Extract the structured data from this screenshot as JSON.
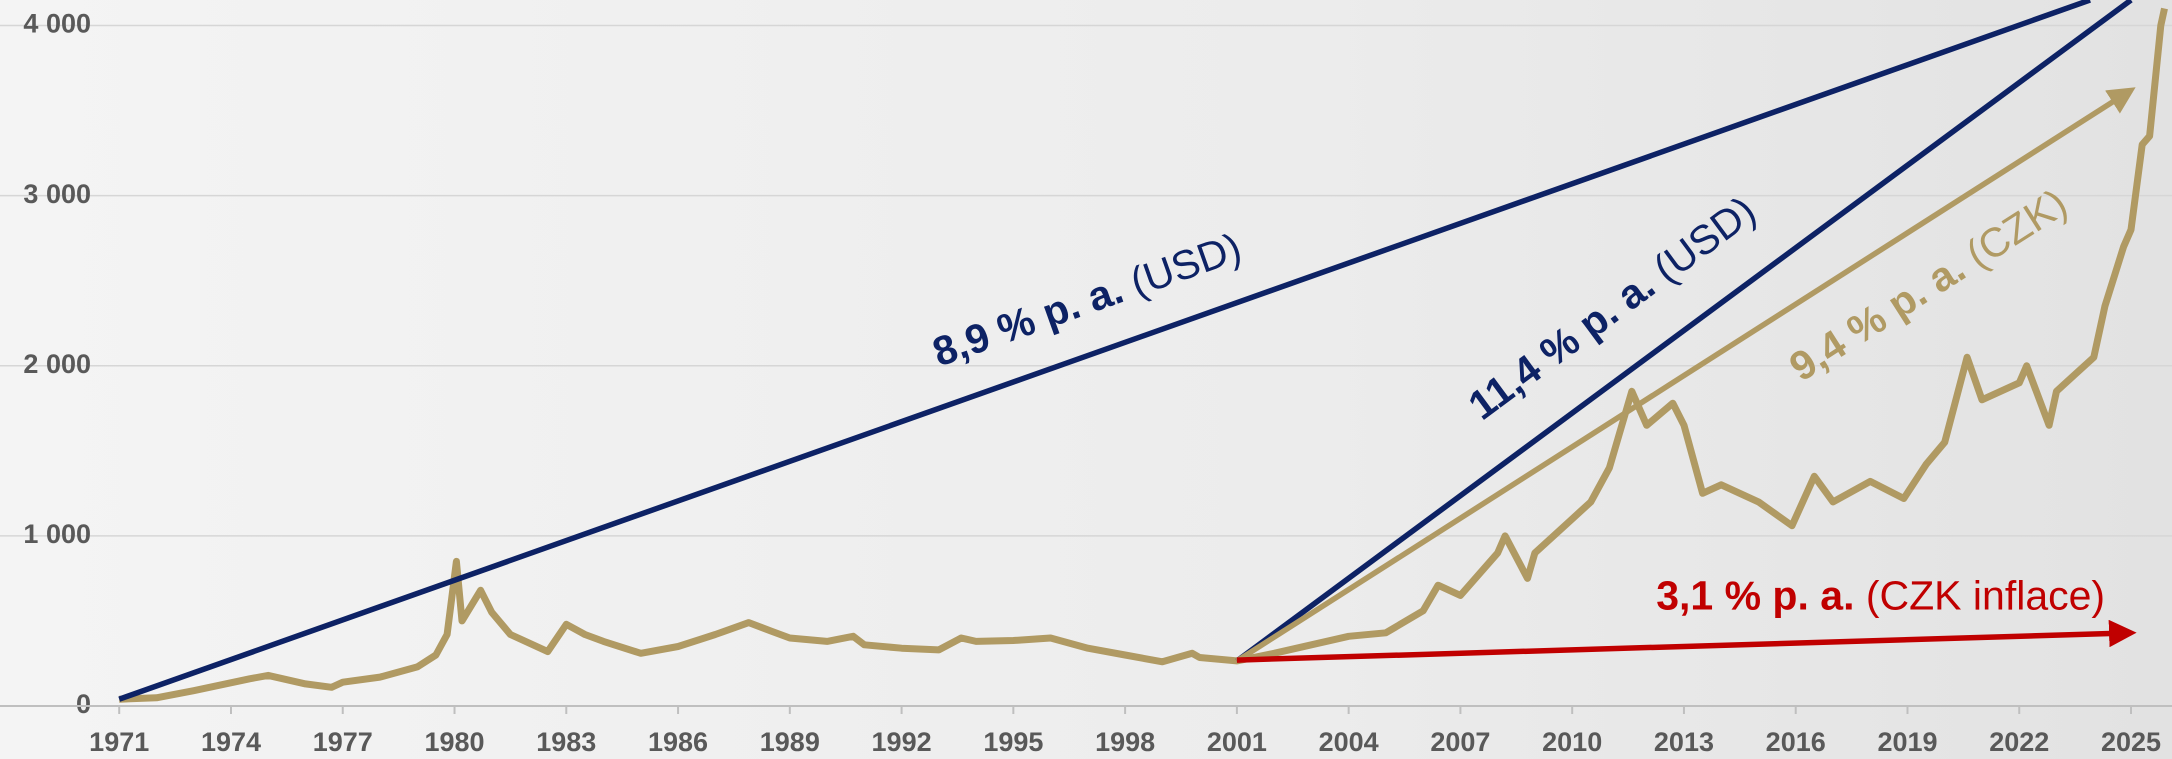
{
  "chart_data": {
    "type": "line",
    "xlim": [
      1967.8,
      2026.1
    ],
    "ylim": [
      0,
      4150
    ],
    "xticks": [
      1971,
      1974,
      1977,
      1980,
      1983,
      1986,
      1989,
      1992,
      1995,
      1998,
      2001,
      2004,
      2007,
      2010,
      2013,
      2016,
      2019,
      2022,
      2025
    ],
    "yticks": [
      0,
      {
        "value": 1000,
        "label": "1 000"
      },
      {
        "value": 2000,
        "label": "2 000"
      },
      {
        "value": 3000,
        "label": "3 000"
      },
      {
        "value": 4000,
        "label": "4 000"
      }
    ],
    "grid": true,
    "series": [
      {
        "color": "#b09a63",
        "x": [
          1971,
          1972,
          1973,
          1974.5,
          1975,
          1976,
          1976.7,
          1977,
          1978,
          1979,
          1979.5,
          1979.8,
          1980.05,
          1980.2,
          1980.7,
          1981,
          1981.5,
          1982.5,
          1983,
          1983.5,
          1984,
          1985,
          1986,
          1987,
          1987.9,
          1988.5,
          1989,
          1990,
          1990.7,
          1991,
          1992,
          1993,
          1993.6,
          1994,
          1995,
          1996,
          1997,
          1998,
          1999,
          1999.8,
          2000,
          2001,
          2002,
          2003,
          2004,
          2005,
          2006,
          2006.4,
          2007,
          2008,
          2008.2,
          2008.8,
          2009,
          2010,
          2010.5,
          2011,
          2011.6,
          2012,
          2012.7,
          2013,
          2013.5,
          2014,
          2015,
          2015.9,
          2016.5,
          2017,
          2018,
          2018.9,
          2019.5,
          2020,
          2020.6,
          2021,
          2022,
          2022.2,
          2022.8,
          2023,
          2023.5,
          2024,
          2024.3,
          2024.8,
          2025,
          2025.3,
          2025.5,
          2025.8,
          2025.9
        ],
        "values": [
          40,
          48,
          90,
          160,
          180,
          130,
          110,
          140,
          170,
          230,
          300,
          420,
          850,
          500,
          680,
          550,
          420,
          320,
          480,
          420,
          380,
          310,
          350,
          420,
          490,
          440,
          400,
          380,
          410,
          360,
          340,
          330,
          400,
          380,
          385,
          400,
          340,
          300,
          260,
          310,
          285,
          265,
          310,
          360,
          410,
          430,
          560,
          710,
          650,
          900,
          1000,
          750,
          900,
          1100,
          1200,
          1400,
          1850,
          1650,
          1780,
          1650,
          1250,
          1300,
          1200,
          1060,
          1350,
          1200,
          1320,
          1220,
          1420,
          1550,
          2050,
          1800,
          1900,
          2000,
          1650,
          1850,
          1950,
          2050,
          2350,
          2700,
          2800,
          3300,
          3350,
          4000,
          4100
        ]
      }
    ],
    "trends": [
      {
        "label": "8,9 % p. a.",
        "suffix": "(USD)",
        "color": "#0d2265",
        "arrow": false,
        "x": [
          1971,
          2023.9
        ],
        "y": [
          40,
          4150
        ]
      },
      {
        "label": "11,4 % p. a.",
        "suffix": "(USD)",
        "color": "#0d2265",
        "arrow": false,
        "x": [
          2001,
          2025
        ],
        "y": [
          265,
          4150
        ]
      },
      {
        "label": "9,4 % p. a.",
        "suffix": "(CZK)",
        "color": "#b09a63",
        "arrow": true,
        "x": [
          2001,
          2025
        ],
        "y": [
          265,
          3620
        ]
      },
      {
        "label": "3,1 % p. a.",
        "suffix": "(CZK inflace)",
        "color": "#c00000",
        "arrow": true,
        "x": [
          2001,
          2025
        ],
        "y": [
          270,
          430
        ]
      }
    ]
  }
}
